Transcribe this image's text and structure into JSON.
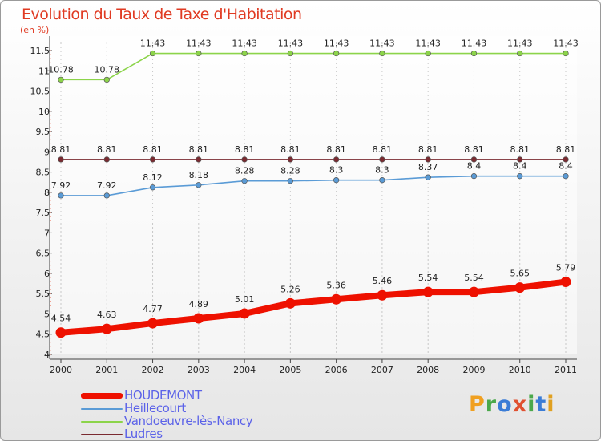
{
  "title": "Evolution du Taux de Taxe d'Habitation",
  "unit_label": "(en %)",
  "logo_text": "Proxiti",
  "chart_data": {
    "type": "line",
    "title": "Evolution du Taux de Taxe d'Habitation",
    "ylabel": "(en %)",
    "xlabel": "",
    "ylim": [
      4,
      11.5
    ],
    "yticks": [
      "4",
      "4.5",
      "5",
      "5.5",
      "6",
      "6.5",
      "7",
      "7.5",
      "8",
      "8.5",
      "9",
      "9.5",
      "10",
      "10.5",
      "11",
      "11.5"
    ],
    "x": [
      "2000",
      "2001",
      "2002",
      "2003",
      "2004",
      "2005",
      "2006",
      "2007",
      "2008",
      "2009",
      "2010",
      "2011"
    ],
    "grid": true,
    "legend_position": "bottom-left",
    "series": [
      {
        "name": "HOUDEMONT",
        "color": "#ee1100",
        "values": [
          4.54,
          4.63,
          4.77,
          4.89,
          5.01,
          5.26,
          5.36,
          5.46,
          5.54,
          5.54,
          5.65,
          5.79
        ],
        "labels": [
          "4.54",
          "4.63",
          "4.77",
          "4.89",
          "5.01",
          "5.26",
          "5.36",
          "5.46",
          "5.54",
          "5.54",
          "5.65",
          "5.79"
        ]
      },
      {
        "name": "Heillecourt",
        "color": "#5a9bd6",
        "values": [
          7.92,
          7.92,
          8.12,
          8.18,
          8.28,
          8.28,
          8.3,
          8.3,
          8.37,
          8.4,
          8.4,
          8.4
        ],
        "labels": [
          "7.92",
          "7.92",
          "8.12",
          "8.18",
          "8.28",
          "8.28",
          "8.3",
          "8.3",
          "8.37",
          "8.4",
          "8.4",
          "8.4"
        ]
      },
      {
        "name": "Vandoeuvre-lès-Nancy",
        "color": "#8cd44a",
        "values": [
          10.78,
          10.78,
          11.43,
          11.43,
          11.43,
          11.43,
          11.43,
          11.43,
          11.43,
          11.43,
          11.43,
          11.43
        ],
        "labels": [
          "10.78",
          "10.78",
          "11.43",
          "11.43",
          "11.43",
          "11.43",
          "11.43",
          "11.43",
          "11.43",
          "11.43",
          "11.43",
          "11.43"
        ]
      },
      {
        "name": "Ludres",
        "color": "#7a2a30",
        "values": [
          8.81,
          8.81,
          8.81,
          8.81,
          8.81,
          8.81,
          8.81,
          8.81,
          8.81,
          8.81,
          8.81,
          8.81
        ],
        "labels": [
          "8.81",
          "8.81",
          "8.81",
          "8.81",
          "8.81",
          "8.81",
          "8.81",
          "8.81",
          "8.81",
          "8.81",
          "8.81",
          "8.81"
        ]
      }
    ]
  }
}
